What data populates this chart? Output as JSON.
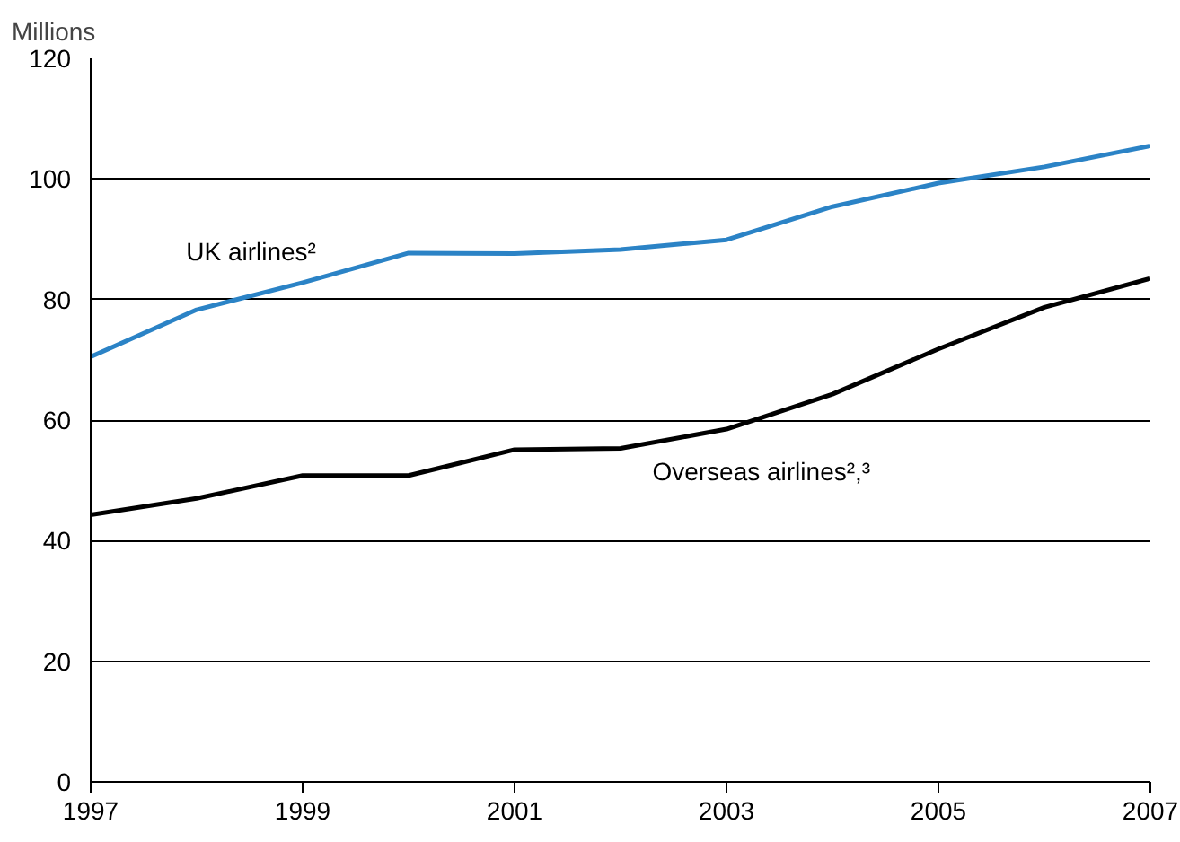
{
  "chart_data": {
    "type": "line",
    "ylabel": "Millions",
    "x": [
      1997,
      1998,
      1999,
      2000,
      2001,
      2002,
      2003,
      2004,
      2005,
      2006,
      2007
    ],
    "series": [
      {
        "name": "UK airlines²",
        "color": "#2b83c6",
        "values": [
          70.5,
          78.3,
          82.8,
          87.7,
          87.6,
          88.3,
          89.9,
          95.4,
          99.3,
          102.0,
          105.5
        ]
      },
      {
        "name": "Overseas airlines²,³",
        "color": "#000000",
        "values": [
          44.3,
          47.0,
          50.8,
          50.8,
          55.1,
          55.3,
          58.5,
          64.3,
          71.8,
          78.7,
          83.5
        ]
      }
    ],
    "xlim": [
      1997,
      2007
    ],
    "xticks": [
      1997,
      1999,
      2001,
      2003,
      2005,
      2007
    ],
    "ylim": [
      0,
      120
    ],
    "yticks": [
      0,
      20,
      40,
      60,
      80,
      100,
      120
    ],
    "grid": "y",
    "marker": "none",
    "line_style": "solid"
  }
}
